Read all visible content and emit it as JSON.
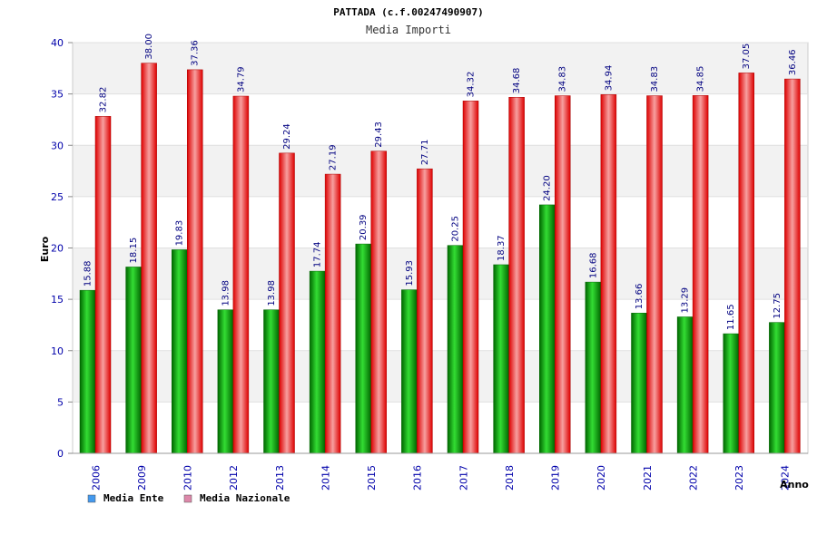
{
  "chart_data": {
    "type": "bar",
    "title": "PATTADA (c.f.00247490907)",
    "subtitle": "Media Importi",
    "xlabel": "Anno",
    "ylabel": "Euro",
    "ylim": [
      0,
      40
    ],
    "yticks": [
      "0",
      "5",
      "10",
      "15",
      "20",
      "25",
      "30",
      "35",
      "40"
    ],
    "grid": true,
    "legend_position": "bottom-left",
    "categories": [
      "2006",
      "2009",
      "2010",
      "2012",
      "2013",
      "2014",
      "2015",
      "2016",
      "2017",
      "2018",
      "2019",
      "2020",
      "2021",
      "2022",
      "2023",
      "2024"
    ],
    "series": [
      {
        "name": "Media Ente",
        "color": "#00aa00",
        "legend_color": "#4499ee",
        "values": [
          15.88,
          18.15,
          19.83,
          13.98,
          13.98,
          17.74,
          20.39,
          15.93,
          20.25,
          18.37,
          24.2,
          16.68,
          13.66,
          13.29,
          11.65,
          12.75
        ],
        "labels": [
          "15.88",
          "18.15",
          "19.83",
          "13.98",
          "13.98",
          "17.74",
          "20.39",
          "15.93",
          "20.25",
          "18.37",
          "24.20",
          "16.68",
          "13.66",
          "13.29",
          "11.65",
          "12.75"
        ]
      },
      {
        "name": "Media Nazionale",
        "color": "#ee1111",
        "legend_color": "#dd88aa",
        "values": [
          32.82,
          38.0,
          37.36,
          34.79,
          29.24,
          27.19,
          29.43,
          27.71,
          34.32,
          34.68,
          34.83,
          34.94,
          34.83,
          34.85,
          37.05,
          36.46
        ],
        "labels": [
          "32.82",
          "38.00",
          "37.36",
          "34.79",
          "29.24",
          "27.19",
          "29.43",
          "27.71",
          "34.32",
          "34.68",
          "34.83",
          "34.94",
          "34.83",
          "34.85",
          "37.05",
          "36.46"
        ]
      }
    ]
  }
}
